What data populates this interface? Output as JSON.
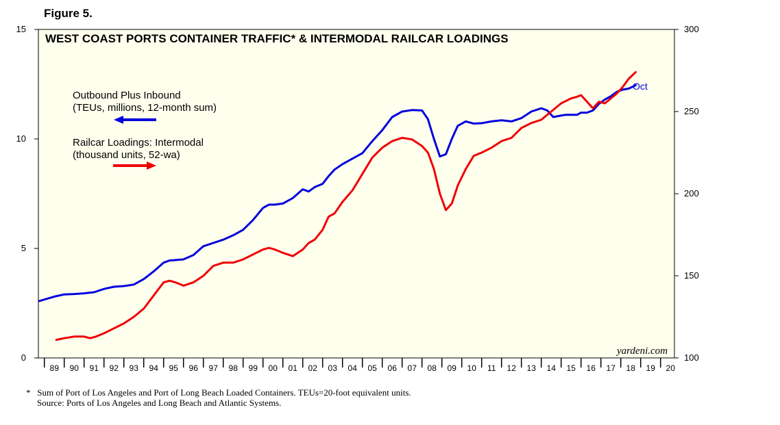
{
  "figure_label": "Figure 5.",
  "footnote": {
    "marker": "*",
    "line1": "Sum of Port of Los Angeles and Port of Long Beach Loaded Containers. TEUs=20-foot equivalent units.",
    "line2": "Source: Ports of Los Angeles and Long Beach and Atlantic Systems."
  },
  "colors": {
    "background": "#ffffee",
    "blue": "#0000dd",
    "red": "#ee0000"
  },
  "chart_data": {
    "type": "line",
    "title": "WEST COAST PORTS CONTAINER TRAFFIC* & INTERMODAL RAILCAR LOADINGS",
    "watermark": "yardeni.com",
    "x_range": [
      1988.7,
      2020.7
    ],
    "x_tick_labels": [
      "89",
      "90",
      "91",
      "92",
      "93",
      "94",
      "95",
      "96",
      "97",
      "98",
      "99",
      "00",
      "01",
      "02",
      "03",
      "04",
      "05",
      "06",
      "07",
      "08",
      "09",
      "10",
      "11",
      "12",
      "13",
      "14",
      "15",
      "16",
      "17",
      "18",
      "19",
      "20"
    ],
    "x_tick_years": [
      1989,
      1990,
      1991,
      1992,
      1993,
      1994,
      1995,
      1996,
      1997,
      1998,
      1999,
      2000,
      2001,
      2002,
      2003,
      2004,
      2005,
      2006,
      2007,
      2008,
      2009,
      2010,
      2011,
      2012,
      2013,
      2014,
      2015,
      2016,
      2017,
      2018,
      2019,
      2020
    ],
    "y_left": {
      "min": 0,
      "max": 15,
      "ticks": [
        0,
        5,
        10,
        15
      ],
      "tick_labels": [
        "0",
        "5",
        "10",
        "15"
      ]
    },
    "y_right": {
      "min": 100,
      "max": 300,
      "ticks": [
        100,
        150,
        200,
        250,
        300
      ],
      "tick_labels": [
        "100",
        "150",
        "200",
        "250",
        "300"
      ]
    },
    "end_annotation": "Oct",
    "legend": [
      {
        "line1": "Outbound Plus Inbound",
        "line2": "(TEUs, millions, 12-month sum)",
        "arrow": "left",
        "color": "#0000dd"
      },
      {
        "line1": "Railcar Loadings: Intermodal",
        "line2": "(thousand units, 52-wa)",
        "arrow": "right",
        "color": "#ee0000"
      }
    ],
    "series": [
      {
        "name": "Outbound Plus Inbound (TEUs, millions, 12-month sum)",
        "axis": "left",
        "color": "#0000dd",
        "x": [
          1988.75,
          1989.5,
          1990,
          1990.5,
          1991,
          1991.5,
          1992,
          1992.5,
          1993,
          1993.5,
          1994,
          1994.5,
          1995,
          1995.3,
          1995.6,
          1996,
          1996.5,
          1997,
          1997.5,
          1998,
          1998.5,
          1999,
          1999.5,
          2000,
          2000.3,
          2000.6,
          2001,
          2001.5,
          2002,
          2002.3,
          2002.6,
          2003,
          2003.3,
          2003.6,
          2004,
          2004.5,
          2005,
          2005.5,
          2006,
          2006.5,
          2007,
          2007.5,
          2008,
          2008.3,
          2008.6,
          2008.9,
          2009.2,
          2009.5,
          2009.8,
          2010.2,
          2010.6,
          2011,
          2011.5,
          2012,
          2012.5,
          2013,
          2013.5,
          2014,
          2014.3,
          2014.6,
          2014.9,
          2015.2,
          2015.5,
          2015.8,
          2016,
          2016.3,
          2016.6,
          2016.9,
          2017.2,
          2017.5,
          2017.8,
          2018.1,
          2018.4,
          2018.75
        ],
        "y": [
          2.6,
          2.8,
          2.9,
          2.92,
          2.95,
          3.0,
          3.15,
          3.25,
          3.28,
          3.35,
          3.6,
          3.95,
          4.35,
          4.45,
          4.47,
          4.5,
          4.7,
          5.1,
          5.25,
          5.4,
          5.6,
          5.85,
          6.3,
          6.85,
          7.0,
          7.0,
          7.05,
          7.3,
          7.7,
          7.6,
          7.8,
          7.95,
          8.3,
          8.6,
          8.85,
          9.1,
          9.35,
          9.9,
          10.4,
          11.0,
          11.25,
          11.32,
          11.3,
          10.9,
          10.0,
          9.2,
          9.3,
          10.0,
          10.6,
          10.8,
          10.7,
          10.72,
          10.8,
          10.85,
          10.8,
          10.95,
          11.25,
          11.4,
          11.3,
          11.0,
          11.05,
          11.1,
          11.1,
          11.1,
          11.2,
          11.2,
          11.3,
          11.6,
          11.8,
          11.95,
          12.15,
          12.25,
          12.3,
          12.45
        ]
      },
      {
        "name": "Railcar Loadings: Intermodal (thousand units, 52-wa)",
        "axis": "right",
        "color": "#ee0000",
        "x": [
          1989.6,
          1990,
          1990.5,
          1991,
          1991.3,
          1991.6,
          1992,
          1992.5,
          1993,
          1993.5,
          1994,
          1994.5,
          1995,
          1995.3,
          1995.6,
          1996,
          1996.5,
          1997,
          1997.5,
          1998,
          1998.5,
          1999,
          1999.5,
          2000,
          2000.3,
          2000.6,
          2001,
          2001.5,
          2002,
          2002.3,
          2002.6,
          2003,
          2003.3,
          2003.6,
          2004,
          2004.5,
          2005,
          2005.5,
          2006,
          2006.5,
          2007,
          2007.5,
          2008,
          2008.3,
          2008.6,
          2008.9,
          2009.2,
          2009.5,
          2009.8,
          2010.2,
          2010.6,
          2011,
          2011.5,
          2012,
          2012.5,
          2013,
          2013.5,
          2014,
          2014.5,
          2015,
          2015.5,
          2015.8,
          2016,
          2016.3,
          2016.6,
          2016.9,
          2017.2,
          2017.5,
          2017.8,
          2018.1,
          2018.4,
          2018.75
        ],
        "y": [
          111,
          112,
          113,
          113,
          112,
          113,
          115,
          118,
          121,
          125,
          130,
          138,
          146,
          147,
          146,
          144,
          146,
          150,
          156,
          158,
          158,
          160,
          163,
          166,
          167,
          166,
          164,
          162,
          166,
          170,
          172,
          178,
          186,
          188,
          195,
          202,
          212,
          222,
          228,
          232,
          234,
          233,
          229,
          225,
          215,
          200,
          190,
          194,
          205,
          215,
          223,
          225,
          228,
          232,
          234,
          240,
          243,
          245,
          250,
          255,
          258,
          259,
          260,
          256,
          252,
          256,
          255,
          258,
          261,
          265,
          270,
          274
        ]
      }
    ]
  }
}
